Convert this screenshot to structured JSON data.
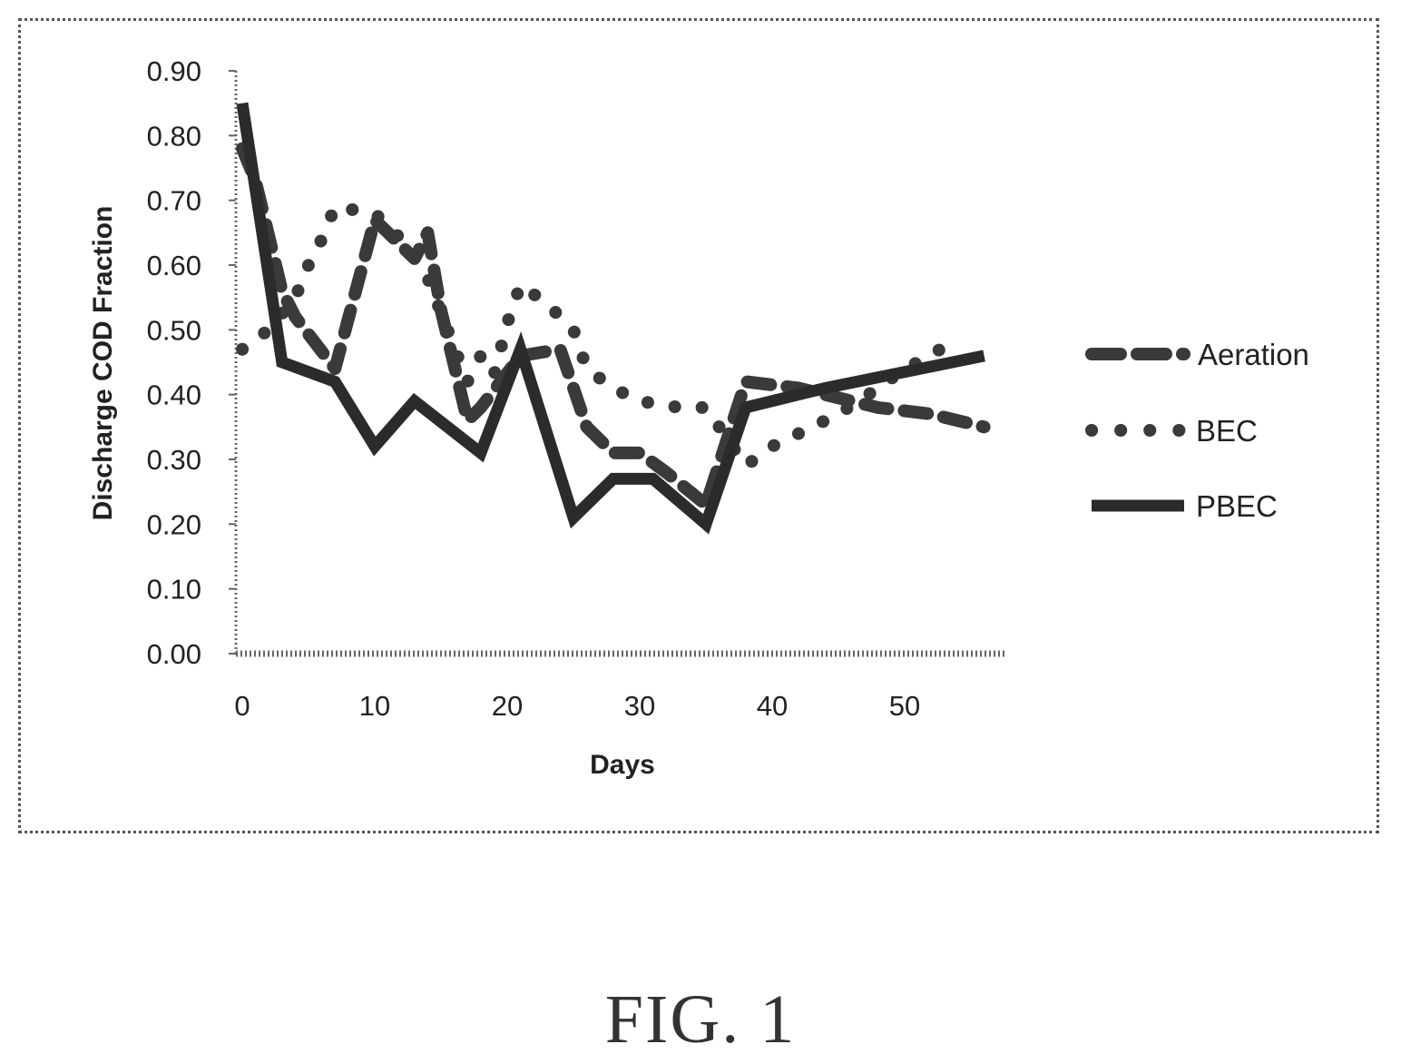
{
  "chart_data": {
    "type": "line",
    "xlabel": "Days",
    "ylabel": "Discharge COD Fraction",
    "xlim": [
      0,
      57
    ],
    "ylim": [
      0,
      0.9
    ],
    "x_ticks": [
      "0",
      "10",
      "20",
      "30",
      "40",
      "50"
    ],
    "x_tick_values": [
      0,
      10,
      20,
      30,
      40,
      50
    ],
    "y_ticks": [
      "0.00",
      "0.10",
      "0.20",
      "0.30",
      "0.40",
      "0.50",
      "0.60",
      "0.70",
      "0.80",
      "0.90"
    ],
    "y_tick_values": [
      0,
      0.1,
      0.2,
      0.3,
      0.4,
      0.5,
      0.6,
      0.7,
      0.8,
      0.9
    ],
    "legend_position": "right",
    "grid": false,
    "series": [
      {
        "name": "Aeration",
        "style": "dashed",
        "x": [
          0,
          1,
          3,
          4,
          7,
          10,
          13,
          14,
          15,
          17,
          18,
          21,
          24,
          26,
          28,
          30,
          32,
          35,
          38,
          42,
          44,
          46,
          48,
          52,
          56
        ],
        "y": [
          0.78,
          0.73,
          0.56,
          0.52,
          0.44,
          0.67,
          0.61,
          0.65,
          0.53,
          0.36,
          0.38,
          0.46,
          0.47,
          0.35,
          0.31,
          0.31,
          0.28,
          0.23,
          0.42,
          0.41,
          0.4,
          0.39,
          0.38,
          0.37,
          0.35
        ]
      },
      {
        "name": "BEC",
        "style": "dotted",
        "x": [
          0,
          2,
          4,
          5,
          6,
          7,
          10,
          12,
          14,
          17,
          18,
          19,
          20,
          21,
          23,
          25,
          26,
          28,
          30,
          33,
          35,
          38,
          40,
          42,
          45,
          48,
          50,
          52,
          54
        ],
        "y": [
          0.47,
          0.5,
          0.55,
          0.6,
          0.64,
          0.69,
          0.68,
          0.64,
          0.58,
          0.42,
          0.46,
          0.43,
          0.51,
          0.57,
          0.54,
          0.5,
          0.44,
          0.41,
          0.39,
          0.38,
          0.38,
          0.29,
          0.32,
          0.34,
          0.37,
          0.41,
          0.44,
          0.46,
          0.49
        ]
      },
      {
        "name": "PBEC",
        "style": "solid",
        "x": [
          0,
          3,
          7,
          10,
          13,
          18,
          21,
          25,
          28,
          31,
          35,
          38,
          44,
          56
        ],
        "y": [
          0.85,
          0.45,
          0.42,
          0.32,
          0.39,
          0.31,
          0.47,
          0.21,
          0.27,
          0.27,
          0.2,
          0.38,
          0.41,
          0.46
        ]
      }
    ]
  },
  "caption": "FIG. 1"
}
